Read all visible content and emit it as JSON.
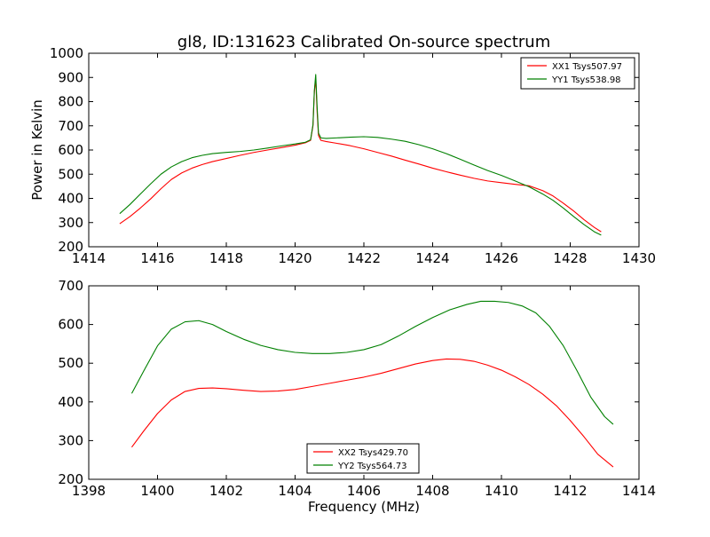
{
  "figure": {
    "title": "gl8, ID:131623 Calibrated On-source spectrum",
    "ylabel": "Power in Kelvin",
    "xlabel": "Frequency (MHz)"
  },
  "chart_data": [
    {
      "type": "line",
      "title": "gl8, ID:131623 Calibrated On-source spectrum",
      "xlabel": "",
      "ylabel": "Power in Kelvin",
      "xlim": [
        1414,
        1430
      ],
      "ylim": [
        200,
        1000
      ],
      "xticks": [
        "1414",
        "1416",
        "1418",
        "1420",
        "1422",
        "1424",
        "1426",
        "1428",
        "1430"
      ],
      "yticks": [
        "200",
        "300",
        "400",
        "500",
        "600",
        "700",
        "800",
        "900",
        "1000"
      ],
      "grid": false,
      "legend_position": "top-right",
      "series": [
        {
          "name": "XX1 Tsys507.97",
          "color": "#ff0000",
          "x": [
            1414.9,
            1415.2,
            1415.5,
            1415.8,
            1416.1,
            1416.4,
            1416.7,
            1417.0,
            1417.3,
            1417.6,
            1418.0,
            1418.4,
            1418.8,
            1419.2,
            1419.6,
            1420.0,
            1420.3,
            1420.45,
            1420.52,
            1420.56,
            1420.6,
            1420.64,
            1420.68,
            1420.75,
            1420.9,
            1421.2,
            1421.6,
            1422.0,
            1422.4,
            1422.8,
            1423.2,
            1423.6,
            1424.0,
            1424.4,
            1424.8,
            1425.2,
            1425.6,
            1426.0,
            1426.4,
            1426.8,
            1427.2,
            1427.5,
            1427.8,
            1428.1,
            1428.4,
            1428.7,
            1428.9
          ],
          "y": [
            295,
            325,
            360,
            398,
            440,
            478,
            505,
            525,
            540,
            552,
            565,
            578,
            590,
            600,
            610,
            620,
            630,
            640,
            700,
            840,
            895,
            760,
            660,
            640,
            635,
            628,
            618,
            605,
            590,
            575,
            558,
            542,
            525,
            510,
            496,
            483,
            472,
            465,
            458,
            452,
            432,
            410,
            380,
            348,
            312,
            280,
            262
          ]
        },
        {
          "name": "YY1 Tsys538.98",
          "color": "#008000",
          "x": [
            1414.9,
            1415.2,
            1415.5,
            1415.8,
            1416.1,
            1416.4,
            1416.7,
            1417.0,
            1417.3,
            1417.6,
            1418.0,
            1418.4,
            1418.8,
            1419.2,
            1419.6,
            1420.0,
            1420.3,
            1420.45,
            1420.52,
            1420.56,
            1420.6,
            1420.64,
            1420.68,
            1420.75,
            1420.9,
            1421.2,
            1421.6,
            1422.0,
            1422.4,
            1422.8,
            1423.2,
            1423.6,
            1424.0,
            1424.4,
            1424.8,
            1425.2,
            1425.6,
            1426.0,
            1426.4,
            1426.8,
            1427.2,
            1427.5,
            1427.8,
            1428.1,
            1428.4,
            1428.7,
            1428.9
          ],
          "y": [
            337,
            375,
            418,
            460,
            500,
            530,
            552,
            568,
            578,
            585,
            590,
            594,
            600,
            608,
            617,
            625,
            632,
            642,
            705,
            845,
            912,
            780,
            670,
            650,
            648,
            650,
            653,
            655,
            652,
            645,
            636,
            622,
            605,
            585,
            562,
            538,
            515,
            495,
            472,
            448,
            418,
            392,
            360,
            325,
            292,
            262,
            248
          ]
        }
      ]
    },
    {
      "type": "line",
      "title": "",
      "xlabel": "Frequency (MHz)",
      "ylabel": "",
      "xlim": [
        1398,
        1414
      ],
      "ylim": [
        200,
        700
      ],
      "xticks": [
        "1398",
        "1400",
        "1402",
        "1404",
        "1406",
        "1408",
        "1410",
        "1412",
        "1414"
      ],
      "yticks": [
        "200",
        "300",
        "400",
        "500",
        "600",
        "700"
      ],
      "grid": false,
      "legend_position": "bottom-center",
      "series": [
        {
          "name": "XX2 Tsys429.70",
          "color": "#ff0000",
          "x": [
            1399.25,
            1399.6,
            1400.0,
            1400.4,
            1400.8,
            1401.2,
            1401.6,
            1402.0,
            1402.5,
            1403.0,
            1403.5,
            1404.0,
            1404.5,
            1405.0,
            1405.5,
            1406.0,
            1406.5,
            1407.0,
            1407.5,
            1408.0,
            1408.4,
            1408.8,
            1409.2,
            1409.6,
            1410.0,
            1410.4,
            1410.8,
            1411.2,
            1411.6,
            1412.0,
            1412.4,
            1412.8,
            1413.25
          ],
          "y": [
            283,
            325,
            370,
            405,
            427,
            435,
            436,
            434,
            430,
            427,
            428,
            432,
            440,
            448,
            456,
            464,
            474,
            486,
            498,
            507,
            511,
            510,
            505,
            495,
            482,
            465,
            445,
            420,
            390,
            352,
            310,
            265,
            232
          ]
        },
        {
          "name": "YY2 Tsys564.73",
          "color": "#008000",
          "x": [
            1399.25,
            1399.6,
            1400.0,
            1400.4,
            1400.8,
            1401.2,
            1401.6,
            1402.0,
            1402.5,
            1403.0,
            1403.5,
            1404.0,
            1404.5,
            1405.0,
            1405.5,
            1406.0,
            1406.5,
            1407.0,
            1407.5,
            1408.0,
            1408.5,
            1409.0,
            1409.4,
            1409.8,
            1410.2,
            1410.6,
            1411.0,
            1411.4,
            1411.8,
            1412.2,
            1412.6,
            1413.0,
            1413.25
          ],
          "y": [
            422,
            480,
            545,
            588,
            607,
            610,
            600,
            582,
            562,
            546,
            535,
            528,
            525,
            525,
            528,
            535,
            548,
            570,
            595,
            618,
            638,
            652,
            660,
            660,
            657,
            648,
            630,
            595,
            545,
            480,
            412,
            362,
            342
          ]
        }
      ]
    }
  ]
}
